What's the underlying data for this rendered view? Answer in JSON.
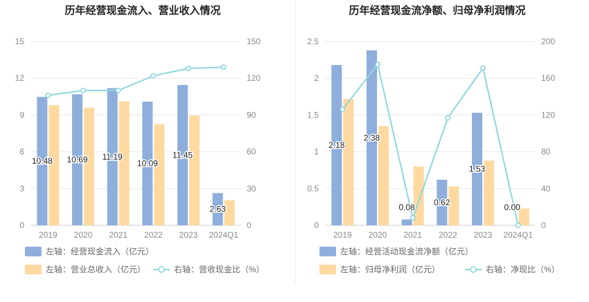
{
  "colors": {
    "bar_blue": "#8eaedc",
    "bar_orange": "#ffd9a0",
    "line_teal": "#8ed6de",
    "grid": "#e8e8e8",
    "axis_text": "#888888",
    "title": "#222222"
  },
  "chart_data": [
    {
      "type": "bar",
      "title": "历年经营现金流入、营业收入情况",
      "categories": [
        "2019",
        "2020",
        "2021",
        "2022",
        "2023",
        "2024Q1"
      ],
      "left_axis": {
        "ticks": [
          "0",
          "3",
          "6",
          "9",
          "12",
          "15"
        ],
        "ylim": [
          0,
          15
        ]
      },
      "right_axis": {
        "ticks": [
          "0",
          "30",
          "60",
          "90",
          "120",
          "150"
        ],
        "ylim": [
          0,
          150
        ]
      },
      "grid": true,
      "legend_position": "bottom",
      "series": [
        {
          "name": "左轴：经营现金流入（亿元）",
          "kind": "bar",
          "axis": "left",
          "color": "#8eaedc",
          "values": [
            10.48,
            10.69,
            11.19,
            10.09,
            11.45,
            2.63
          ],
          "labels": [
            "10.48",
            "10.69",
            "11.19",
            "10.09",
            "11.45",
            "2.63"
          ]
        },
        {
          "name": "左轴：营业总收入（亿元）",
          "kind": "bar",
          "axis": "left",
          "color": "#ffd9a0",
          "values": [
            9.8,
            9.6,
            10.1,
            8.25,
            8.95,
            2.05
          ]
        },
        {
          "name": "右轴：营收现金比（%）",
          "kind": "line",
          "axis": "right",
          "color": "#8ed6de",
          "values": [
            106,
            110,
            110,
            122,
            128,
            129
          ]
        }
      ]
    },
    {
      "type": "bar",
      "title": "历年经营现金流净额、归母净利润情况",
      "categories": [
        "2019",
        "2020",
        "2021",
        "2022",
        "2023",
        "2024Q1"
      ],
      "left_axis": {
        "ticks": [
          "0",
          "0.5",
          "1",
          "1.5",
          "2",
          "2.5"
        ],
        "ylim": [
          0,
          2.5
        ]
      },
      "right_axis": {
        "ticks": [
          "0",
          "40",
          "80",
          "120",
          "160",
          "200"
        ],
        "ylim": [
          0,
          200
        ]
      },
      "grid": true,
      "legend_position": "bottom",
      "series": [
        {
          "name": "左轴：经营活动现金流净额（亿元）",
          "kind": "bar",
          "axis": "left",
          "color": "#8eaedc",
          "values": [
            2.18,
            2.38,
            0.08,
            0.62,
            1.53,
            0.0
          ],
          "labels": [
            "2.18",
            "2.38",
            "0.08",
            "0.62",
            "1.53",
            "0.00"
          ]
        },
        {
          "name": "左轴：归母净利润（亿元）",
          "kind": "bar",
          "axis": "left",
          "color": "#ffd9a0",
          "values": [
            1.72,
            1.35,
            0.8,
            0.53,
            0.88,
            0.23
          ]
        },
        {
          "name": "右轴：净现比（%）",
          "kind": "line",
          "axis": "right",
          "color": "#8ed6de",
          "values": [
            126,
            175,
            8,
            117,
            171,
            0
          ]
        }
      ]
    }
  ]
}
